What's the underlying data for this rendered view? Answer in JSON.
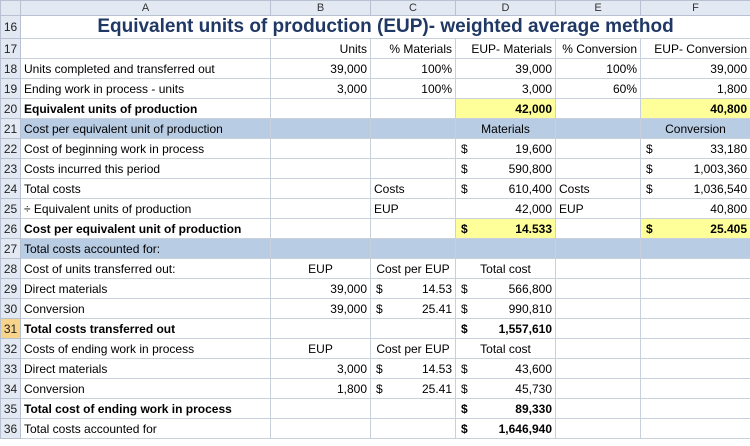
{
  "columns": [
    "A",
    "B",
    "C",
    "D",
    "E",
    "F"
  ],
  "title": "Equivalent units of production (EUP)- weighted average method",
  "rows": {
    "r16": "16",
    "r17": "17",
    "r18": "18",
    "r19": "19",
    "r20": "20",
    "r21": "21",
    "r22": "22",
    "r23": "23",
    "r24": "24",
    "r25": "25",
    "r26": "26",
    "r27": "27",
    "r28": "28",
    "r29": "29",
    "r30": "30",
    "r31": "31",
    "r32": "32",
    "r33": "33",
    "r34": "34",
    "r35": "35",
    "r36": "36"
  },
  "hdr": {
    "units": "Units",
    "pct_mat": "% Materials",
    "eup_mat": "EUP- Materials",
    "pct_conv": "% Conversion",
    "eup_conv": "EUP- Conversion"
  },
  "r18": {
    "label": "Units completed and transferred out",
    "units": "39,000",
    "pct_mat": "100%",
    "eup_mat": "39,000",
    "pct_conv": "100%",
    "eup_conv": "39,000"
  },
  "r19": {
    "label": "Ending work in process - units",
    "units": "3,000",
    "pct_mat": "100%",
    "eup_mat": "3,000",
    "pct_conv": "60%",
    "eup_conv": "1,800"
  },
  "r20": {
    "label": "Equivalent units of production",
    "eup_mat": "42,000",
    "eup_conv": "40,800"
  },
  "r21": {
    "label": "Cost per equivalent unit of production",
    "materials": "Materials",
    "conversion": "Conversion"
  },
  "r22": {
    "label": "Cost of beginning work in process",
    "d_sym": "$",
    "d_val": "19,600",
    "f_sym": "$",
    "f_val": "33,180"
  },
  "r23": {
    "label": "Costs incurred this period",
    "d_sym": "$",
    "d_val": "590,800",
    "f_sym": "$",
    "f_val": "1,003,360"
  },
  "r24": {
    "label": "Total costs",
    "c": "Costs",
    "d_sym": "$",
    "d_val": "610,400",
    "e": "Costs",
    "f_sym": "$",
    "f_val": "1,036,540"
  },
  "r25": {
    "label": "÷ Equivalent units of production",
    "c": "EUP",
    "d_val": "42,000",
    "e": "EUP",
    "f_val": "40,800"
  },
  "r26": {
    "label": "Cost per equivalent unit of production",
    "d_sym": "$",
    "d_val": "14.533",
    "f_sym": "$",
    "f_val": "25.405"
  },
  "r27": {
    "label": "Total costs accounted for:"
  },
  "r28": {
    "label": "Cost of units transferred out:",
    "b": "EUP",
    "c": "Cost per EUP",
    "d": "Total cost"
  },
  "r29": {
    "label": "Direct materials",
    "b": "39,000",
    "c_sym": "$",
    "c_val": "14.53",
    "d_sym": "$",
    "d_val": "566,800"
  },
  "r30": {
    "label": "Conversion",
    "b": "39,000",
    "c_sym": "$",
    "c_val": "25.41",
    "d_sym": "$",
    "d_val": "990,810"
  },
  "r31": {
    "label": "Total costs transferred out",
    "d_sym": "$",
    "d_val": "1,557,610"
  },
  "r32": {
    "label": "Costs of ending work in process",
    "b": "EUP",
    "c": "Cost per EUP",
    "d": "Total cost"
  },
  "r33": {
    "label": "Direct materials",
    "b": "3,000",
    "c_sym": "$",
    "c_val": "14.53",
    "d_sym": "$",
    "d_val": "43,600"
  },
  "r34": {
    "label": "Conversion",
    "b": "1,800",
    "c_sym": "$",
    "c_val": "25.41",
    "d_sym": "$",
    "d_val": "45,730"
  },
  "r35": {
    "label": "Total cost of ending work in process",
    "d_sym": "$",
    "d_val": "89,330"
  },
  "r36": {
    "label": "Total costs accounted for",
    "d_sym": "$",
    "d_val": "1,646,940"
  }
}
